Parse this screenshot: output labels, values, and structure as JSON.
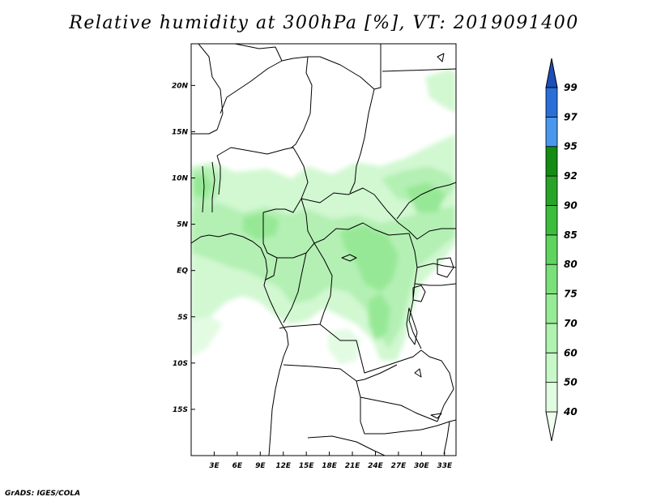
{
  "title": "Relative humidity at 300hPa [%], VT: 2019091400",
  "credit": "GrADS: IGES/COLA",
  "map": {
    "lon_range": [
      0,
      34.5
    ],
    "lat_range": [
      -20,
      24.5
    ],
    "lat_ticks": [
      {
        "value": 20,
        "label": "20N"
      },
      {
        "value": 15,
        "label": "15N"
      },
      {
        "value": 10,
        "label": "10N"
      },
      {
        "value": 5,
        "label": "5N"
      },
      {
        "value": 0,
        "label": "EQ"
      },
      {
        "value": -5,
        "label": "5S"
      },
      {
        "value": -10,
        "label": "10S"
      },
      {
        "value": -15,
        "label": "15S"
      }
    ],
    "lon_ticks": [
      {
        "value": 3,
        "label": "3E"
      },
      {
        "value": 6,
        "label": "6E"
      },
      {
        "value": 9,
        "label": "9E"
      },
      {
        "value": 12,
        "label": "12E"
      },
      {
        "value": 15,
        "label": "15E"
      },
      {
        "value": 18,
        "label": "18E"
      },
      {
        "value": 21,
        "label": "21E"
      },
      {
        "value": 24,
        "label": "24E"
      },
      {
        "value": 27,
        "label": "27E"
      },
      {
        "value": 30,
        "label": "30E"
      },
      {
        "value": 33,
        "label": "33E"
      }
    ]
  },
  "colorbar": {
    "levels": [
      "40",
      "50",
      "60",
      "70",
      "75",
      "80",
      "85",
      "90",
      "92",
      "95",
      "97",
      "99"
    ],
    "colors": [
      "#f0fff0",
      "#e0fbe0",
      "#c8f7c8",
      "#b0f2b0",
      "#96eb96",
      "#7ae07a",
      "#5fd45f",
      "#3cbe3c",
      "#28a428",
      "#148c14",
      "#4a98ee",
      "#2a6fd8",
      "#1d4fb8"
    ]
  }
}
